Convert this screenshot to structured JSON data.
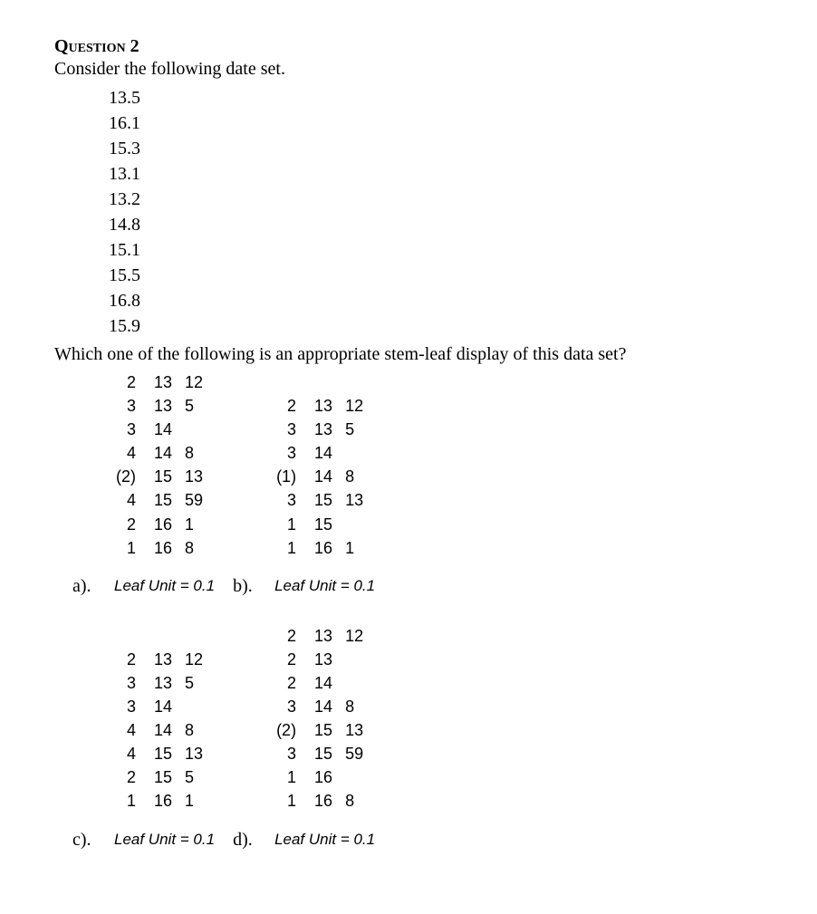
{
  "header": "Question 2",
  "prompt": "Consider the following date set.",
  "data_values": [
    "13.5",
    "16.1",
    "15.3",
    "13.1",
    "13.2",
    "14.8",
    "15.1",
    "15.5",
    "16.8",
    "15.9"
  ],
  "which_line": "Which one of the following is an appropriate stem-leaf display of this data set?",
  "leaf_unit_text": "Leaf Unit = 0.1",
  "options": {
    "a": {
      "label": "a).",
      "rows": [
        {
          "cnt": "2",
          "stem": "13",
          "leaf": "12"
        },
        {
          "cnt": "3",
          "stem": "13",
          "leaf": "5"
        },
        {
          "cnt": "3",
          "stem": "14",
          "leaf": ""
        },
        {
          "cnt": "4",
          "stem": "14",
          "leaf": "8"
        },
        {
          "cnt": "(2)",
          "stem": "15",
          "leaf": "13"
        },
        {
          "cnt": "4",
          "stem": "15",
          "leaf": "59"
        },
        {
          "cnt": "2",
          "stem": "16",
          "leaf": "1"
        },
        {
          "cnt": "1",
          "stem": "16",
          "leaf": "8"
        }
      ]
    },
    "b": {
      "label": "b).",
      "rows": [
        {
          "cnt": "2",
          "stem": "13",
          "leaf": "12"
        },
        {
          "cnt": "3",
          "stem": "13",
          "leaf": "5"
        },
        {
          "cnt": "3",
          "stem": "14",
          "leaf": ""
        },
        {
          "cnt": "(1)",
          "stem": "14",
          "leaf": "8"
        },
        {
          "cnt": "3",
          "stem": "15",
          "leaf": "13"
        },
        {
          "cnt": "1",
          "stem": "15",
          "leaf": ""
        },
        {
          "cnt": "1",
          "stem": "16",
          "leaf": "1"
        }
      ]
    },
    "c": {
      "label": "c).",
      "rows": [
        {
          "cnt": "2",
          "stem": "13",
          "leaf": "12"
        },
        {
          "cnt": "3",
          "stem": "13",
          "leaf": "5"
        },
        {
          "cnt": "3",
          "stem": "14",
          "leaf": ""
        },
        {
          "cnt": "4",
          "stem": "14",
          "leaf": "8"
        },
        {
          "cnt": "4",
          "stem": "15",
          "leaf": "13"
        },
        {
          "cnt": "2",
          "stem": "15",
          "leaf": "5"
        },
        {
          "cnt": "1",
          "stem": "16",
          "leaf": "1"
        }
      ]
    },
    "d": {
      "label": "d).",
      "rows": [
        {
          "cnt": "2",
          "stem": "13",
          "leaf": "12"
        },
        {
          "cnt": "2",
          "stem": "13",
          "leaf": ""
        },
        {
          "cnt": "2",
          "stem": "14",
          "leaf": ""
        },
        {
          "cnt": "3",
          "stem": "14",
          "leaf": "8"
        },
        {
          "cnt": "(2)",
          "stem": "15",
          "leaf": "13"
        },
        {
          "cnt": "3",
          "stem": "15",
          "leaf": "59"
        },
        {
          "cnt": "1",
          "stem": "16",
          "leaf": ""
        },
        {
          "cnt": "1",
          "stem": "16",
          "leaf": "8"
        }
      ]
    }
  },
  "style": {
    "body_font": "Times New Roman",
    "body_fontsize_pt": 15,
    "sans_font": "Arial",
    "sans_fontsize_pt": 13.5,
    "italic_fontsize_pt": 12.5,
    "text_color": "#000000",
    "background_color": "#ffffff"
  }
}
